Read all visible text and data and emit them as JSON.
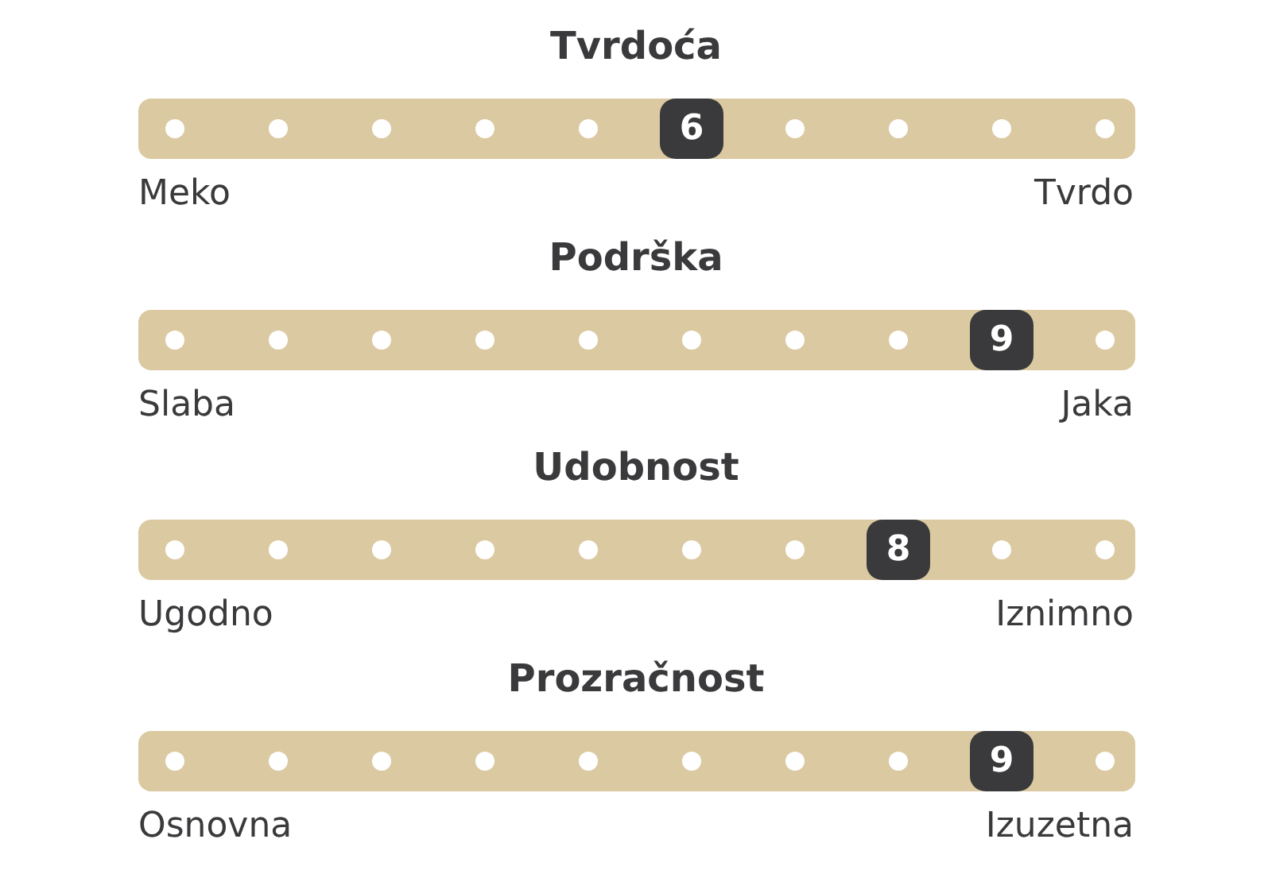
{
  "chart_data": [
    {
      "type": "other",
      "title": "Tvrdoća",
      "categories": [
        null,
        null,
        null,
        null,
        null,
        null,
        null,
        null,
        null,
        null
      ],
      "values": [
        null,
        null,
        null,
        null,
        null,
        6,
        null,
        null,
        null,
        null
      ],
      "color": "#3a3a3c",
      "data_labels": true,
      "annotations": [
        "Meko",
        "Tvrdo"
      ]
    },
    {
      "type": "other",
      "title": "Podrška",
      "categories": [
        null,
        null,
        null,
        null,
        null,
        null,
        null,
        null,
        null,
        null
      ],
      "values": [
        null,
        null,
        null,
        null,
        null,
        null,
        null,
        null,
        9,
        null
      ],
      "color": "#3a3a3c",
      "data_labels": true,
      "annotations": [
        "Slaba",
        "Jaka"
      ]
    },
    {
      "type": "other",
      "title": "Udobnost",
      "categories": [
        null,
        null,
        null,
        null,
        null,
        null,
        null,
        null,
        null,
        null
      ],
      "values": [
        null,
        null,
        null,
        null,
        null,
        null,
        null,
        8,
        null,
        null
      ],
      "color": "#3a3a3c",
      "data_labels": true,
      "annotations": [
        "Ugodno",
        "Iznimno"
      ]
    },
    {
      "type": "other",
      "title": "Prozračnost",
      "categories": [
        null,
        null,
        null,
        null,
        null,
        null,
        null,
        null,
        null,
        null
      ],
      "values": [
        null,
        null,
        null,
        null,
        null,
        null,
        null,
        null,
        9,
        null
      ],
      "color": "#3a3a3c",
      "data_labels": true,
      "annotations": [
        "Osnovna",
        "Izuzetna"
      ]
    }
  ]
}
